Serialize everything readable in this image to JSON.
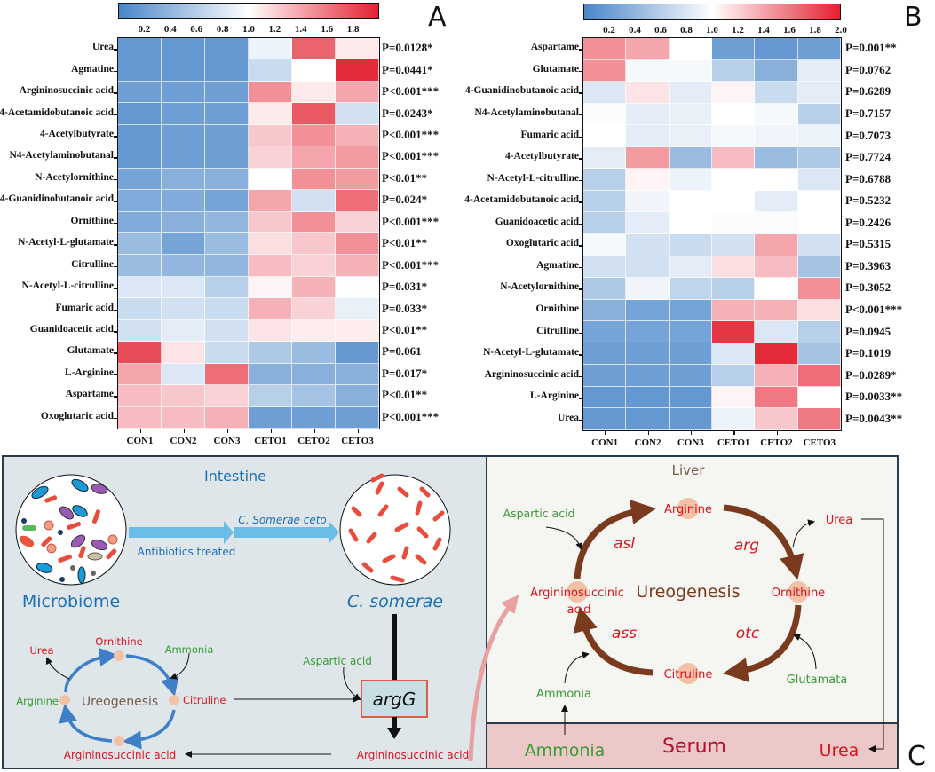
{
  "chart_data": [
    {
      "type": "heatmap",
      "panel": "A",
      "colorbar": {
        "ticks": [
          "0.2",
          "0.4",
          "0.6",
          "0.8",
          "1.0",
          "1.2",
          "1.4",
          "1.6",
          "1.8"
        ],
        "range": [
          0,
          2
        ],
        "colors": [
          "#4a86c8",
          "#ffffff",
          "#e3202f"
        ]
      },
      "columns": [
        "CON1",
        "CON2",
        "CON3",
        "CETO1",
        "CETO2",
        "CETO3"
      ],
      "rows": [
        "Urea",
        "Agmatine",
        "Argininosuccinic acid",
        "4-Acetamidobutanoic acid",
        "4-Acetylbutyrate",
        "N4-Acetylaminobutanal",
        "N-Acetylornithine",
        "4-Guanidinobutanoic acid",
        "Ornithine",
        "N-Acetyl-L-glutamate",
        "Citrulline",
        "N-Acetyl-L-citrulline",
        "Fumaric acid",
        "Guanidoacetic acid",
        "Glutamate",
        "L-Arginine",
        "Aspartame",
        "Oxoglutaric acid"
      ],
      "p_values": [
        "P=0.0128*",
        "P=0.0441*",
        "P<0.001***",
        "P=0.0243*",
        "P<0.001***",
        "P<0.001***",
        "P<0.01**",
        "P=0.024*",
        "P<0.001***",
        "P<0.01**",
        "P<0.001***",
        "P=0.031*",
        "P=0.033*",
        "P<0.01**",
        "P=0.061",
        "P=0.017*",
        "P<0.01**",
        "P<0.001***"
      ],
      "values": [
        [
          0.15,
          0.15,
          0.15,
          0.9,
          1.7,
          1.1
        ],
        [
          0.15,
          0.15,
          0.15,
          0.7,
          1.0,
          1.95
        ],
        [
          0.2,
          0.2,
          0.2,
          1.5,
          1.1,
          1.4
        ],
        [
          0.15,
          0.2,
          0.2,
          1.1,
          1.75,
          0.75
        ],
        [
          0.15,
          0.2,
          0.2,
          1.25,
          1.5,
          1.35
        ],
        [
          0.15,
          0.2,
          0.2,
          1.2,
          1.4,
          1.45
        ],
        [
          0.25,
          0.35,
          0.35,
          1.0,
          1.5,
          1.45
        ],
        [
          0.3,
          0.3,
          0.25,
          1.4,
          0.75,
          1.65
        ],
        [
          0.3,
          0.35,
          0.4,
          1.25,
          1.5,
          1.2
        ],
        [
          0.45,
          0.25,
          0.45,
          1.15,
          1.25,
          1.5
        ],
        [
          0.45,
          0.4,
          0.4,
          1.3,
          1.2,
          1.35
        ],
        [
          0.8,
          0.8,
          0.6,
          1.05,
          1.35,
          0.98
        ],
        [
          0.7,
          0.75,
          0.7,
          1.35,
          1.2,
          0.88
        ],
        [
          0.75,
          0.85,
          0.75,
          1.12,
          1.08,
          1.08
        ],
        [
          1.8,
          1.12,
          0.7,
          0.55,
          0.45,
          0.15
        ],
        [
          1.4,
          0.8,
          1.65,
          0.35,
          0.35,
          0.35
        ],
        [
          1.3,
          1.25,
          1.2,
          0.6,
          0.5,
          0.35
        ],
        [
          1.3,
          1.3,
          1.35,
          0.2,
          0.2,
          0.2
        ]
      ]
    },
    {
      "type": "heatmap",
      "panel": "B",
      "colorbar": {
        "ticks": [
          "0.2",
          "0.4",
          "0.6",
          "0.8",
          "1.0",
          "1.2",
          "1.4",
          "1.6",
          "1.8",
          "2.0"
        ],
        "range": [
          0,
          2
        ],
        "colors": [
          "#4a86c8",
          "#ffffff",
          "#e3202f"
        ]
      },
      "columns": [
        "CON1",
        "CON2",
        "CON3",
        "CETO1",
        "CETO2",
        "CETO3"
      ],
      "rows": [
        "Aspartame",
        "Glutamate",
        "4-Guanidinobutanoic acid",
        "N4-Acetylaminobutanal",
        "Fumaric acid",
        "4-Acetylbutyrate",
        "N-Acetyl-L-citrulline",
        "4-Acetamidobutanoic acid",
        "Guanidoacetic acid",
        "Oxoglutaric acid",
        "Agmatine",
        "N-Acetylornithine",
        "Ornithine",
        "Citrulline",
        "N-Acetyl-L-glutamate",
        "Argininosuccinic acid",
        "L-Arginine",
        "Urea"
      ],
      "p_values": [
        "P=0.001**",
        "P=0.0762",
        "P=0.6289",
        "P=0.7157",
        "P=0.7073",
        "P=0.7724",
        "P=0.6788",
        "P=0.5232",
        "P=0.2426",
        "P=0.5315",
        "P=0.3963",
        "P=0.3052",
        "P<0.001***",
        "P=0.0945",
        "P=0.1019",
        "P=0.0289*",
        "P=0.0033**",
        "P=0.0043**"
      ],
      "values": [
        [
          1.5,
          1.4,
          1.0,
          0.2,
          0.15,
          0.2
        ],
        [
          1.5,
          0.95,
          0.95,
          0.6,
          0.35,
          0.85
        ],
        [
          0.8,
          1.12,
          0.85,
          1.05,
          0.7,
          0.85
        ],
        [
          1.02,
          0.85,
          0.88,
          1.0,
          0.95,
          0.6
        ],
        [
          1.0,
          0.85,
          0.88,
          0.95,
          0.92,
          0.9
        ],
        [
          0.85,
          1.45,
          0.45,
          1.3,
          0.45,
          0.55
        ],
        [
          0.6,
          1.05,
          0.9,
          1.0,
          1.0,
          0.8
        ],
        [
          0.6,
          0.92,
          1.0,
          1.0,
          0.85,
          1.0
        ],
        [
          0.6,
          0.85,
          1.0,
          0.97,
          0.97,
          1.0
        ],
        [
          0.95,
          0.75,
          0.7,
          0.75,
          1.4,
          0.75
        ],
        [
          0.75,
          0.75,
          0.85,
          1.15,
          1.3,
          0.5
        ],
        [
          0.55,
          0.92,
          0.65,
          0.6,
          1.0,
          1.5
        ],
        [
          0.35,
          0.25,
          0.25,
          1.35,
          1.35,
          1.15
        ],
        [
          0.25,
          0.25,
          0.25,
          1.9,
          0.8,
          0.6
        ],
        [
          0.2,
          0.2,
          0.2,
          0.8,
          1.95,
          0.5
        ],
        [
          0.2,
          0.2,
          0.2,
          0.6,
          1.35,
          1.65
        ],
        [
          0.15,
          0.15,
          0.15,
          1.05,
          1.6,
          1.0
        ],
        [
          0.15,
          0.15,
          0.15,
          0.9,
          1.25,
          1.6
        ]
      ]
    }
  ],
  "panel_letters": {
    "a": "A",
    "b": "B",
    "c": "C"
  },
  "diagram": {
    "intestine": {
      "title": "Intestine",
      "microbiome": "Microbiome",
      "treatment": "Antibiotics treated",
      "strain_label": "C. Somerae ceto",
      "strain": "C. somerae",
      "gene": "argG",
      "aspartic_acid": "Aspartic acid",
      "product": "Argininosuccinic acid",
      "cycle": {
        "center": "Ureogenesis",
        "ornithine": "Ornithine",
        "urea": "Urea",
        "ammonia": "Ammonia",
        "arginine": "Arginine",
        "citruline": "Citruline",
        "argininosuccinic": "Argininosuccinic acid"
      }
    },
    "liver": {
      "title": "Liver",
      "center": "Ureogenesis",
      "arginine": "Arginine",
      "ornithine": "Ornithine",
      "citruline": "Citruline",
      "argininosuccinic_1": "Argininosuccinic",
      "argininosuccinic_2": "acid",
      "enzymes": {
        "asl": "asl",
        "arg": "arg",
        "ass": "ass",
        "otc": "otc"
      },
      "aspartic_acid": "Aspartic acid",
      "urea": "Urea",
      "glutamata": "Glutamata",
      "ammonia": "Ammonia"
    },
    "serum": {
      "title": "Serum",
      "ammonia": "Ammonia",
      "urea": "Urea"
    },
    "colors": {
      "blue": "#1a6fb5",
      "red": "#d9141e",
      "green": "#3a9a35",
      "brown": "#7a3a1e",
      "arrow_blue": "#6bbde8",
      "serum_bg": "#ecc8c8"
    }
  }
}
